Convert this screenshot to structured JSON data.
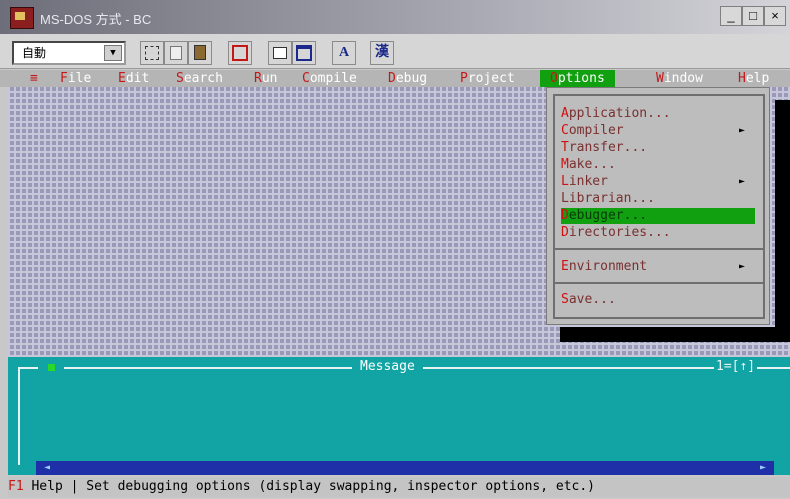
{
  "window": {
    "title": "MS-DOS 方式 - BC",
    "minimize": "_",
    "restore": "□",
    "close": "×"
  },
  "toolbar": {
    "font_size_value": "自動",
    "font_size_button": "▼",
    "font_button": "A",
    "properties_button": "漢"
  },
  "menubar": {
    "system": "≡",
    "items": [
      {
        "hotkey": "F",
        "rest": "ile"
      },
      {
        "hotkey": "E",
        "rest": "dit"
      },
      {
        "hotkey": "S",
        "rest": "earch"
      },
      {
        "hotkey": "R",
        "rest": "un"
      },
      {
        "hotkey": "C",
        "rest": "ompile"
      },
      {
        "hotkey": "D",
        "rest": "ebug"
      },
      {
        "hotkey": "P",
        "rest": "roject"
      },
      {
        "hotkey": "O",
        "rest": "ptions"
      },
      {
        "hotkey": "W",
        "rest": "indow"
      },
      {
        "hotkey": "H",
        "rest": "elp"
      }
    ]
  },
  "options_menu": {
    "items": [
      {
        "hotkey": "A",
        "rest": "pplication..."
      },
      {
        "hotkey": "C",
        "rest": "ompiler",
        "arrow": "►"
      },
      {
        "hotkey": "T",
        "rest": "ransfer..."
      },
      {
        "hotkey": "M",
        "rest": "ake..."
      },
      {
        "hotkey": "L",
        "rest": "inker",
        "arrow": "►"
      },
      {
        "hotkey": "",
        "rest": "Librarian..."
      },
      {
        "hotkey": "D",
        "rest": "ebugger..."
      },
      {
        "hotkey": "D",
        "rest": "irectories..."
      },
      {
        "hotkey": "E",
        "rest": "nvironment",
        "arrow": "►"
      },
      {
        "hotkey": "S",
        "rest": "ave..."
      }
    ],
    "selected_index": 6
  },
  "message_window": {
    "title": "Message",
    "close_box": "[ ]",
    "zoom": "1=[↑]"
  },
  "scrollbar": {
    "left": "◄",
    "right": "►"
  },
  "status": {
    "key": "F1",
    "key_label": " Help",
    "text": " | Set debugging options (display swapping, inspector options, etc.)"
  },
  "colors": {
    "desktop": "#9a9ab8",
    "menu_highlight": "#10a010",
    "message_bg": "#12a4a4",
    "hotkey": "#c41818"
  }
}
